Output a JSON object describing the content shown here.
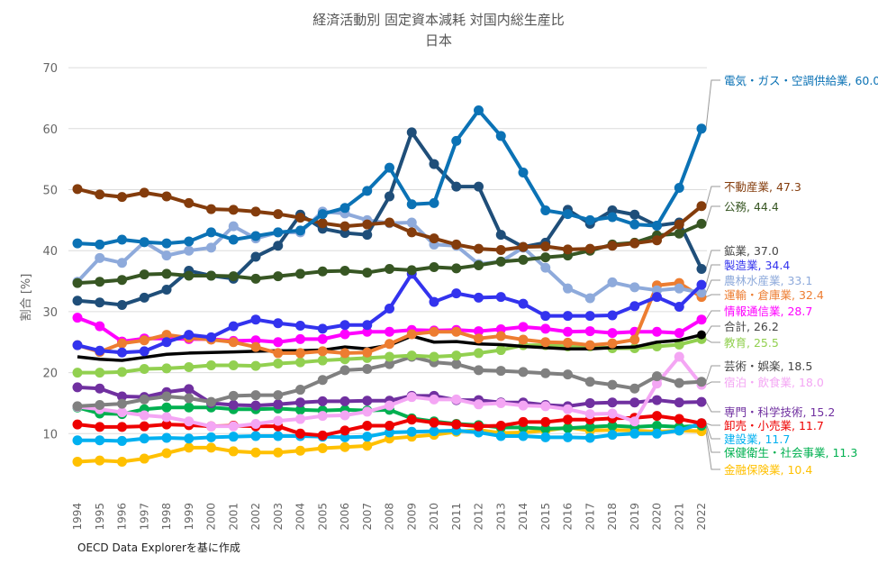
{
  "chart_data": {
    "type": "line",
    "title": "経済活動別 固定資本減耗 対国内総生産比",
    "subtitle": "日本",
    "ylabel": "割合 [%]",
    "xlabel": "",
    "ylim": [
      0,
      70
    ],
    "yticks": [
      10,
      20,
      30,
      40,
      50,
      60,
      70
    ],
    "grid": true,
    "legend": "right-end labels",
    "source_note": "OECD Data Explorerを基に作成",
    "x": [
      1994,
      1995,
      1996,
      1997,
      1998,
      1999,
      2000,
      2001,
      2002,
      2003,
      2004,
      2005,
      2006,
      2007,
      2008,
      2009,
      2010,
      2011,
      2012,
      2013,
      2014,
      2015,
      2016,
      2017,
      2018,
      2019,
      2020,
      2021,
      2022
    ],
    "series": [
      {
        "name": "電気・ガス・空調供給業",
        "label": "電気・ガス・空調供給業, 60.0",
        "color": "#0b72b5",
        "values": [
          41.2,
          41,
          41.8,
          41.4,
          41.2,
          41.5,
          43,
          41.8,
          42.4,
          43,
          43.3,
          46,
          47,
          49.8,
          53.6,
          47.6,
          47.8,
          58,
          63,
          58.8,
          52.8,
          46.6,
          46,
          45,
          45.5,
          44.3,
          44.1,
          50.3,
          60.0
        ]
      },
      {
        "name": "不動産業",
        "label": "不動産業, 47.3",
        "color": "#843c0c",
        "values": [
          50.1,
          49.2,
          48.8,
          49.5,
          48.9,
          47.8,
          46.8,
          46.7,
          46.4,
          46,
          45.4,
          44.5,
          44,
          44.3,
          44.6,
          43,
          42,
          41,
          40.3,
          40.1,
          40.6,
          40.7,
          40.2,
          40.3,
          40.8,
          41.2,
          41.7,
          44.3,
          47.3
        ]
      },
      {
        "name": "公務",
        "label": "公務, 44.4",
        "color": "#375623",
        "values": [
          34.7,
          34.9,
          35.2,
          36.1,
          36.2,
          35.9,
          35.9,
          35.8,
          35.4,
          35.8,
          36.2,
          36.6,
          36.7,
          36.4,
          37,
          36.8,
          37.3,
          37.1,
          37.6,
          38.2,
          38.5,
          38.9,
          39.2,
          40,
          41,
          41.3,
          42.5,
          42.8,
          44.4
        ]
      },
      {
        "name": "鉱業",
        "label": "鉱業, 37.0",
        "color": "#1f4e79",
        "values": [
          31.8,
          31.5,
          31.1,
          32.3,
          33.6,
          36.7,
          35.9,
          35.4,
          39,
          40.8,
          45.9,
          43.6,
          42.9,
          42.6,
          48.9,
          59.4,
          54.2,
          50.5,
          50.5,
          42.6,
          40.6,
          41.3,
          46.7,
          44.4,
          46.6,
          45.9,
          44.1,
          44.6,
          37.0
        ]
      },
      {
        "name": "製造業",
        "label": "製造業, 34.4",
        "color": "#3333ee",
        "values": [
          24.5,
          23.6,
          23.3,
          23.5,
          25,
          26.2,
          25.8,
          27.6,
          28.7,
          28.1,
          27.7,
          27.2,
          27.8,
          27.8,
          30.5,
          36.2,
          31.6,
          33,
          32.3,
          32.4,
          31.3,
          29.3,
          29.3,
          29.3,
          29.4,
          30.9,
          32.4,
          30.8,
          34.4
        ]
      },
      {
        "name": "農林水産業",
        "label": "農林水産業, 33.1",
        "color": "#8eaadb",
        "values": [
          34.9,
          38.8,
          38,
          41.4,
          39.2,
          40,
          40.5,
          44,
          42,
          43,
          43,
          46.4,
          46.1,
          45,
          44.5,
          44.6,
          41,
          40.8,
          37.8,
          38.2,
          40.5,
          37.2,
          33.8,
          32.2,
          34.8,
          34,
          33.5,
          33.8,
          33.1
        ]
      },
      {
        "name": "運輸・倉庫業",
        "label": "運輸・倉庫業, 32.4",
        "color": "#ed7d31",
        "values": [
          24.5,
          23.4,
          24.8,
          25.3,
          26.2,
          25.7,
          25.4,
          25,
          24.2,
          23.2,
          23.2,
          23.5,
          23.2,
          23.3,
          24.7,
          26.3,
          26.7,
          26.7,
          25.6,
          26,
          25.4,
          25,
          24.9,
          24.5,
          24.8,
          25.4,
          34.3,
          34.7,
          32.4
        ]
      },
      {
        "name": "情報通信業",
        "label": "情報通信業, 28.7",
        "color": "#ff00ff",
        "values": [
          29,
          27.6,
          25.1,
          25.6,
          25.6,
          25.5,
          25.5,
          25.2,
          25.3,
          25,
          25.5,
          25.5,
          26.3,
          26.7,
          26.7,
          27,
          26.9,
          27,
          26.8,
          27.1,
          27.5,
          27.2,
          26.7,
          26.8,
          26.5,
          26.7,
          26.7,
          26.5,
          28.7
        ]
      },
      {
        "name": "合計",
        "label": "合計, 26.2",
        "color": "#000000",
        "values": [
          22.6,
          22.2,
          22.0,
          22.5,
          23.0,
          23.2,
          23.3,
          23.4,
          23.5,
          23.6,
          23.6,
          23.7,
          24.2,
          23.9,
          24.5,
          26.0,
          25.0,
          25.1,
          24.7,
          24.6,
          24.3,
          24.1,
          23.9,
          23.9,
          24.1,
          24.2,
          25.0,
          25.3,
          26.2
        ]
      },
      {
        "name": "教育",
        "label": "教育, 25.5",
        "color": "#92d050",
        "values": [
          20,
          20,
          20.1,
          20.6,
          20.7,
          20.9,
          21.2,
          21.2,
          21.1,
          21.5,
          21.7,
          22,
          22.2,
          22.4,
          22.6,
          22.8,
          22.6,
          22.8,
          23.2,
          23.7,
          24.5,
          24.5,
          24.3,
          24.3,
          24,
          24,
          24.3,
          24.6,
          25.5
        ]
      },
      {
        "name": "芸術・娯楽",
        "label": "芸術・娯楽, 18.5",
        "color": "#808080",
        "values": [
          14.5,
          14.7,
          14.9,
          15.6,
          16.1,
          15.8,
          15.2,
          16.2,
          16.3,
          16.3,
          17.2,
          18.8,
          20.4,
          20.6,
          21.4,
          22.6,
          21.7,
          21.4,
          20.4,
          20.3,
          20.1,
          19.9,
          19.7,
          18.5,
          18.0,
          17.4,
          19.4,
          18.3,
          18.5
        ]
      },
      {
        "name": "宿泊・飲食業",
        "label": "宿泊・飲食業, 18.0",
        "color": "#f4a6f4",
        "values": [
          14.4,
          14,
          13.5,
          13,
          12.7,
          12,
          11.2,
          11.2,
          11.6,
          12.1,
          12.4,
          12.9,
          13,
          13.6,
          14.6,
          16,
          15.6,
          15.6,
          14.8,
          15,
          14.6,
          14.5,
          14,
          13.2,
          13.3,
          12,
          18.2,
          22.6,
          18.0
        ]
      },
      {
        "name": "専門・科学技術",
        "label": "専門・科学技術, 15.2",
        "color": "#7030a0",
        "values": [
          17.6,
          17.4,
          16.1,
          16,
          16.8,
          17.3,
          15,
          14.7,
          14.6,
          14.8,
          15.1,
          15.3,
          15.3,
          15.4,
          15.4,
          16.2,
          16.2,
          15.5,
          15.5,
          15.1,
          15.1,
          14.7,
          14.5,
          15,
          15.1,
          15.1,
          15.5,
          15.1,
          15.2
        ]
      },
      {
        "name": "卸売・小売業",
        "label": "卸売・小売業, 11.7",
        "color": "#ee0000",
        "values": [
          11.5,
          11.1,
          11.1,
          11.2,
          11.5,
          11.4,
          11.2,
          11.3,
          11.2,
          11.2,
          10,
          9.7,
          10.5,
          11.3,
          11.3,
          12.3,
          11.8,
          11.5,
          11.2,
          11.3,
          11.9,
          11.9,
          12.3,
          12.3,
          12.5,
          12.6,
          12.9,
          12.4,
          11.7
        ]
      },
      {
        "name": "建設業",
        "label": "建設業, 11.7",
        "color": "#00b0f0",
        "values": [
          8.9,
          8.9,
          8.8,
          9.2,
          9.3,
          9.2,
          9.4,
          9.5,
          9.6,
          9.6,
          9.6,
          9.5,
          9.4,
          9.5,
          10.2,
          10.3,
          10.4,
          10.5,
          10.2,
          9.6,
          9.6,
          9.4,
          9.4,
          9.3,
          9.8,
          10,
          10.0,
          10.5,
          11.7
        ]
      },
      {
        "name": "保健衛生・社会事業",
        "label": "保健衛生・社会事業, 11.3",
        "color": "#00b050",
        "values": [
          14.3,
          13.3,
          13.2,
          14,
          14.3,
          14.3,
          14.3,
          14,
          14,
          14.1,
          13.9,
          13.8,
          13.9,
          13.8,
          13.9,
          12.5,
          12.0,
          11.6,
          11.4,
          11,
          11,
          10.8,
          10.9,
          11.1,
          11.3,
          11.1,
          11.3,
          11.1,
          11.3
        ]
      },
      {
        "name": "金融保険業",
        "label": "金融保険業, 10.4",
        "color": "#ffc000",
        "values": [
          5.4,
          5.6,
          5.4,
          5.9,
          6.8,
          7.7,
          7.7,
          7.1,
          6.9,
          6.9,
          7.2,
          7.6,
          7.8,
          8,
          9.2,
          9.5,
          9.8,
          10.3,
          10.6,
          10.1,
          10.2,
          10.5,
          11,
          10.5,
          10.6,
          10.5,
          10.3,
          10.5,
          10.4
        ]
      }
    ]
  }
}
